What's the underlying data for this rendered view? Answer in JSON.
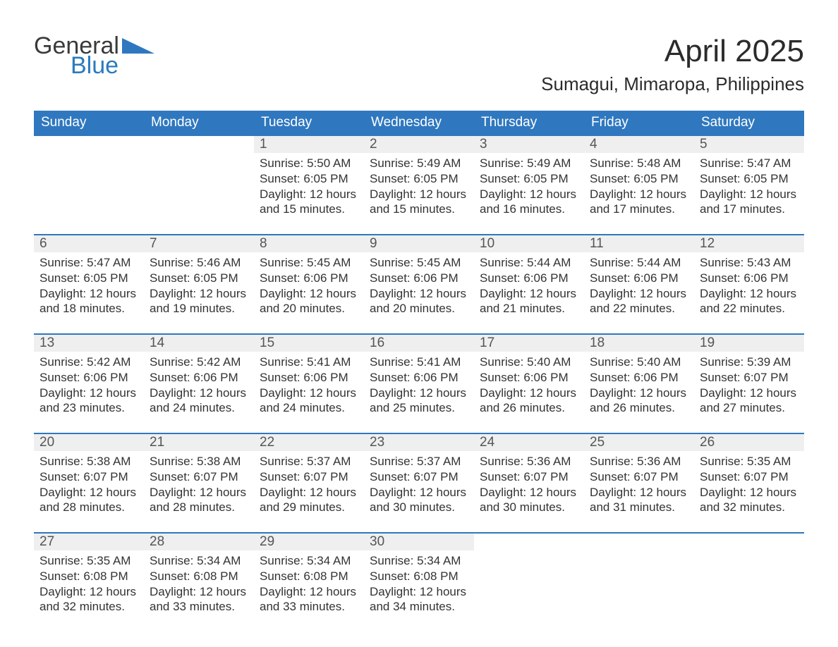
{
  "logo": {
    "part1": "General",
    "part2": "Blue",
    "tri_color": "#2f78bf"
  },
  "title": "April 2025",
  "subtitle": "Sumagui, Mimaropa, Philippines",
  "colors": {
    "header_bg": "#2f78bf",
    "header_fg": "#ffffff",
    "daynum_bg": "#efefef",
    "daynum_fg": "#555555",
    "row_divider": "#2f78bf",
    "body_text": "#333333",
    "page_bg": "#ffffff"
  },
  "columns": [
    "Sunday",
    "Monday",
    "Tuesday",
    "Wednesday",
    "Thursday",
    "Friday",
    "Saturday"
  ],
  "weeks": [
    [
      null,
      null,
      {
        "n": "1",
        "sr": "5:50 AM",
        "ss": "6:05 PM",
        "dl": "12 hours and 15 minutes."
      },
      {
        "n": "2",
        "sr": "5:49 AM",
        "ss": "6:05 PM",
        "dl": "12 hours and 15 minutes."
      },
      {
        "n": "3",
        "sr": "5:49 AM",
        "ss": "6:05 PM",
        "dl": "12 hours and 16 minutes."
      },
      {
        "n": "4",
        "sr": "5:48 AM",
        "ss": "6:05 PM",
        "dl": "12 hours and 17 minutes."
      },
      {
        "n": "5",
        "sr": "5:47 AM",
        "ss": "6:05 PM",
        "dl": "12 hours and 17 minutes."
      }
    ],
    [
      {
        "n": "6",
        "sr": "5:47 AM",
        "ss": "6:05 PM",
        "dl": "12 hours and 18 minutes."
      },
      {
        "n": "7",
        "sr": "5:46 AM",
        "ss": "6:05 PM",
        "dl": "12 hours and 19 minutes."
      },
      {
        "n": "8",
        "sr": "5:45 AM",
        "ss": "6:06 PM",
        "dl": "12 hours and 20 minutes."
      },
      {
        "n": "9",
        "sr": "5:45 AM",
        "ss": "6:06 PM",
        "dl": "12 hours and 20 minutes."
      },
      {
        "n": "10",
        "sr": "5:44 AM",
        "ss": "6:06 PM",
        "dl": "12 hours and 21 minutes."
      },
      {
        "n": "11",
        "sr": "5:44 AM",
        "ss": "6:06 PM",
        "dl": "12 hours and 22 minutes."
      },
      {
        "n": "12",
        "sr": "5:43 AM",
        "ss": "6:06 PM",
        "dl": "12 hours and 22 minutes."
      }
    ],
    [
      {
        "n": "13",
        "sr": "5:42 AM",
        "ss": "6:06 PM",
        "dl": "12 hours and 23 minutes."
      },
      {
        "n": "14",
        "sr": "5:42 AM",
        "ss": "6:06 PM",
        "dl": "12 hours and 24 minutes."
      },
      {
        "n": "15",
        "sr": "5:41 AM",
        "ss": "6:06 PM",
        "dl": "12 hours and 24 minutes."
      },
      {
        "n": "16",
        "sr": "5:41 AM",
        "ss": "6:06 PM",
        "dl": "12 hours and 25 minutes."
      },
      {
        "n": "17",
        "sr": "5:40 AM",
        "ss": "6:06 PM",
        "dl": "12 hours and 26 minutes."
      },
      {
        "n": "18",
        "sr": "5:40 AM",
        "ss": "6:06 PM",
        "dl": "12 hours and 26 minutes."
      },
      {
        "n": "19",
        "sr": "5:39 AM",
        "ss": "6:07 PM",
        "dl": "12 hours and 27 minutes."
      }
    ],
    [
      {
        "n": "20",
        "sr": "5:38 AM",
        "ss": "6:07 PM",
        "dl": "12 hours and 28 minutes."
      },
      {
        "n": "21",
        "sr": "5:38 AM",
        "ss": "6:07 PM",
        "dl": "12 hours and 28 minutes."
      },
      {
        "n": "22",
        "sr": "5:37 AM",
        "ss": "6:07 PM",
        "dl": "12 hours and 29 minutes."
      },
      {
        "n": "23",
        "sr": "5:37 AM",
        "ss": "6:07 PM",
        "dl": "12 hours and 30 minutes."
      },
      {
        "n": "24",
        "sr": "5:36 AM",
        "ss": "6:07 PM",
        "dl": "12 hours and 30 minutes."
      },
      {
        "n": "25",
        "sr": "5:36 AM",
        "ss": "6:07 PM",
        "dl": "12 hours and 31 minutes."
      },
      {
        "n": "26",
        "sr": "5:35 AM",
        "ss": "6:07 PM",
        "dl": "12 hours and 32 minutes."
      }
    ],
    [
      {
        "n": "27",
        "sr": "5:35 AM",
        "ss": "6:08 PM",
        "dl": "12 hours and 32 minutes."
      },
      {
        "n": "28",
        "sr": "5:34 AM",
        "ss": "6:08 PM",
        "dl": "12 hours and 33 minutes."
      },
      {
        "n": "29",
        "sr": "5:34 AM",
        "ss": "6:08 PM",
        "dl": "12 hours and 33 minutes."
      },
      {
        "n": "30",
        "sr": "5:34 AM",
        "ss": "6:08 PM",
        "dl": "12 hours and 34 minutes."
      },
      null,
      null,
      null
    ]
  ],
  "labels": {
    "sunrise": "Sunrise: ",
    "sunset": "Sunset: ",
    "daylight": "Daylight: "
  }
}
